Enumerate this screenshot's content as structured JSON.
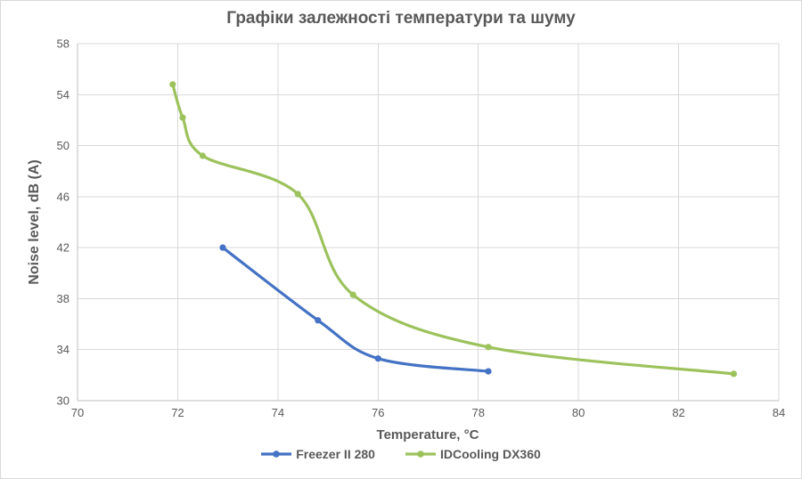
{
  "chart_data": {
    "type": "line",
    "title": "Графіки залежності температури та шуму",
    "xlabel": "Temperature, °C",
    "ylabel": "Noise level, dB (A)",
    "xlim": [
      70,
      84
    ],
    "ylim": [
      30,
      58
    ],
    "x_ticks": [
      70,
      72,
      74,
      76,
      78,
      80,
      82,
      84
    ],
    "y_ticks": [
      30,
      34,
      38,
      42,
      46,
      50,
      54,
      58
    ],
    "grid": true,
    "smooth_lines": true,
    "markers": true,
    "legend_position": "bottom",
    "series": [
      {
        "name": "Freezer II 280",
        "color": "#4472C4",
        "points": [
          [
            72.9,
            42.0
          ],
          [
            74.8,
            36.3
          ],
          [
            76.0,
            33.3
          ],
          [
            78.2,
            32.3
          ]
        ]
      },
      {
        "name": "IDCooling DX360",
        "color": "#9CC25C",
        "points": [
          [
            71.9,
            54.8
          ],
          [
            72.1,
            52.2
          ],
          [
            72.5,
            49.2
          ],
          [
            74.4,
            46.2
          ],
          [
            75.5,
            38.3
          ],
          [
            78.2,
            34.2
          ],
          [
            83.1,
            32.1
          ]
        ]
      }
    ]
  },
  "colors": {
    "gridline": "#D9D9D9",
    "axis_line": "#BFBFBF",
    "text": "#595959",
    "background": "#FFFFFF",
    "border": "#D9D9D9"
  }
}
